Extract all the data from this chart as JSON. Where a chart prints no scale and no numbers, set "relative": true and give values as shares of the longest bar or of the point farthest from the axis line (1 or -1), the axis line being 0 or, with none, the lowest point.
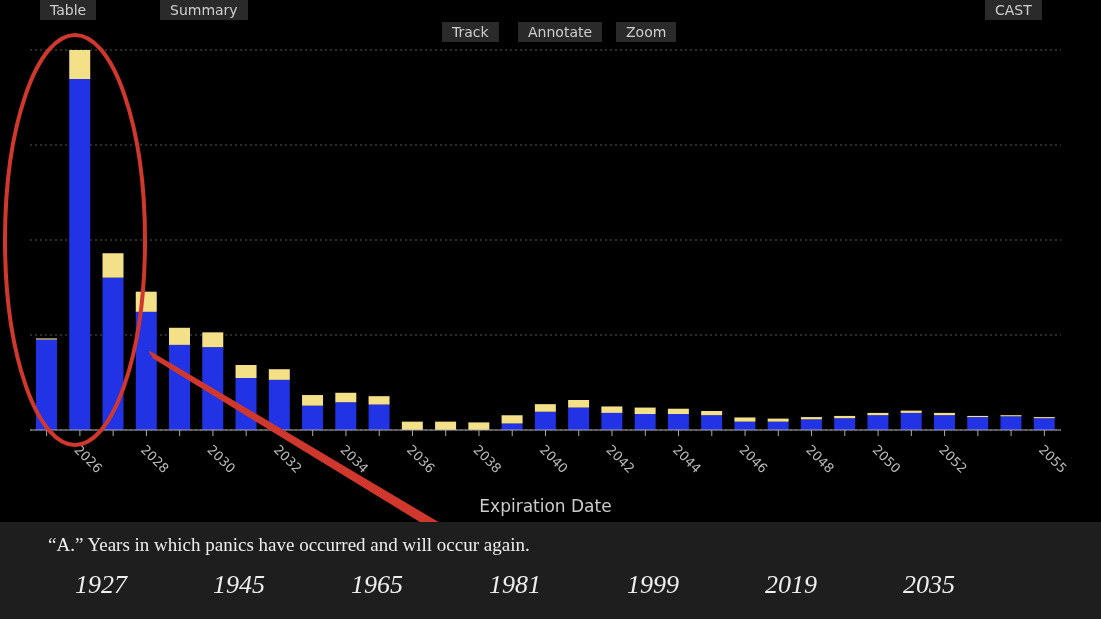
{
  "chart_data": {
    "type": "bar",
    "stacked": true,
    "relative": true,
    "grid": "y",
    "xlabel": "Expiration Date",
    "categories": [
      null,
      "2026",
      null,
      "2028",
      null,
      "2030",
      null,
      "2032",
      null,
      "2034",
      null,
      "2036",
      null,
      "2038",
      null,
      "2040",
      null,
      "2042",
      null,
      "2044",
      null,
      "2046",
      null,
      "2048",
      null,
      "2050",
      null,
      "2052",
      null,
      null,
      "2055"
    ],
    "series": [
      {
        "color": "#2233e6",
        "values": [
          0.238,
          0.924,
          0.401,
          0.311,
          0.224,
          0.218,
          0.137,
          0.132,
          0.064,
          0.073,
          0.067,
          null,
          null,
          null,
          0.017,
          0.048,
          0.059,
          0.045,
          0.042,
          0.042,
          0.039,
          0.022,
          0.022,
          0.028,
          0.031,
          0.039,
          0.045,
          0.039,
          0.034,
          0.036,
          0.031
        ]
      },
      {
        "color": "#f5e08a",
        "values": [
          0.003,
          0.076,
          0.064,
          0.053,
          0.045,
          0.039,
          0.034,
          0.028,
          0.028,
          0.025,
          0.022,
          0.022,
          0.022,
          0.02,
          0.022,
          0.02,
          0.02,
          0.017,
          0.017,
          0.014,
          0.011,
          0.011,
          0.008,
          0.006,
          0.006,
          0.006,
          0.006,
          0.006,
          0.003,
          0.003,
          0.003
        ]
      }
    ],
    "annotations": [
      "Table",
      "Summary",
      "Track",
      "Annotate",
      "Zoom",
      "CAST",
      "“A.” Years in which panics have occurred and will occur again.",
      "1927",
      "1945",
      "1965",
      "1981",
      "1999",
      "2019",
      "2035"
    ]
  }
}
